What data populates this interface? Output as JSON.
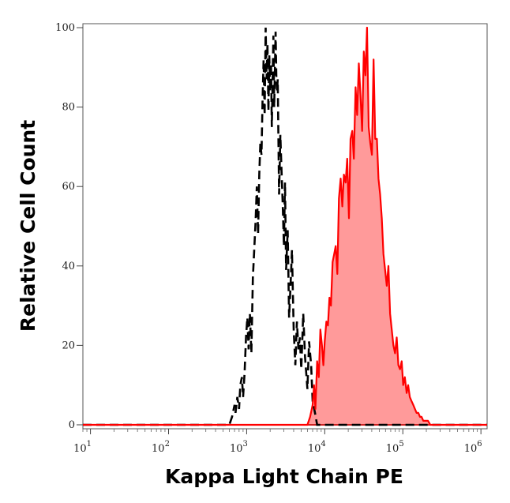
{
  "chart_data": {
    "type": "area",
    "xlabel": "Kappa Light Chain PE",
    "ylabel": "Relative Cell Count",
    "xscale": "log",
    "xlim": [
      8,
      1200000
    ],
    "ylim": [
      -1,
      101
    ],
    "grid": false,
    "legend": "none",
    "y_ticks": [
      0,
      20,
      40,
      60,
      80,
      100
    ],
    "x_tick_exponents": [
      1,
      2,
      3,
      4,
      5,
      6
    ],
    "x_tick_base": "10",
    "x_tick_values": [
      10,
      100,
      1000,
      10000,
      100000,
      1000000
    ],
    "colors": {
      "positive_line": "#ff0000",
      "positive_fill": "#ff9a9a",
      "control_line": "#000000",
      "baseline": "#cc2222"
    },
    "series": [
      {
        "style": "dashed",
        "filled": false,
        "x": [
          8,
          600,
          650,
          700,
          720,
          760,
          800,
          830,
          870,
          900,
          940,
          980,
          1020,
          1060,
          1100,
          1150,
          1200,
          1250,
          1300,
          1350,
          1400,
          1450,
          1500,
          1550,
          1600,
          1650,
          1700,
          1750,
          1800,
          1850,
          1900,
          1950,
          2000,
          2050,
          2100,
          2150,
          2200,
          2250,
          2300,
          2350,
          2400,
          2450,
          2500,
          2600,
          2700,
          2800,
          2900,
          3000,
          3100,
          3200,
          3350,
          3500,
          3650,
          3800,
          4000,
          4200,
          4400,
          4600,
          4800,
          5000,
          5300,
          5600,
          6000,
          6300,
          6700,
          7000,
          7500,
          8000,
          1200000
        ],
        "y": [
          0,
          0,
          2,
          5,
          3,
          7,
          4,
          10,
          12,
          7,
          13,
          22,
          27,
          19,
          28,
          18,
          37,
          44,
          51,
          60,
          48,
          63,
          71,
          68,
          82,
          92,
          78,
          100,
          87,
          96,
          79,
          93,
          84,
          91,
          75,
          87,
          98,
          80,
          89,
          99,
          88,
          84,
          87,
          58,
          73,
          64,
          55,
          45,
          61,
          39,
          49,
          27,
          35,
          44,
          24,
          15,
          26,
          19,
          22,
          14,
          28,
          17,
          9,
          21,
          15,
          6,
          3,
          0,
          0
        ]
      },
      {
        "style": "solid",
        "filled": true,
        "x": [
          8,
          6000,
          6500,
          7000,
          7300,
          7600,
          8000,
          8400,
          8800,
          9200,
          9600,
          10000,
          10500,
          11000,
          11500,
          12000,
          12600,
          13200,
          13800,
          14500,
          15200,
          16000,
          16800,
          17600,
          18500,
          19400,
          20400,
          21400,
          22500,
          23600,
          24800,
          26000,
          27300,
          28700,
          30100,
          31600,
          33200,
          34800,
          36500,
          38300,
          40200,
          42200,
          44300,
          46500,
          48800,
          51200,
          53800,
          56500,
          59300,
          62300,
          65400,
          68700,
          72100,
          75700,
          79500,
          83500,
          87600,
          92000,
          96600,
          101000,
          106000,
          112000,
          117000,
          123000,
          129000,
          136000,
          143000,
          150000,
          158000,
          166000,
          174000,
          183000,
          195000,
          210000,
          225000,
          245000,
          270000,
          300000,
          330000,
          360000,
          1200000
        ],
        "y": [
          0,
          0,
          2,
          5,
          10,
          4,
          16,
          12,
          24,
          20,
          15,
          21,
          26,
          25,
          32,
          30,
          41,
          43,
          45,
          38,
          57,
          62,
          55,
          63,
          61,
          67,
          52,
          72,
          74,
          67,
          85,
          78,
          91,
          83,
          74,
          94,
          88,
          100,
          75,
          71,
          68,
          92,
          72,
          72,
          62,
          58,
          52,
          43,
          39,
          35,
          40,
          28,
          24,
          20,
          18,
          22,
          15,
          14,
          16,
          10,
          12,
          8,
          10,
          7,
          6,
          5,
          4,
          3,
          3,
          2,
          2,
          1,
          1,
          1,
          0,
          0,
          0,
          0,
          0,
          0,
          0
        ]
      }
    ]
  }
}
